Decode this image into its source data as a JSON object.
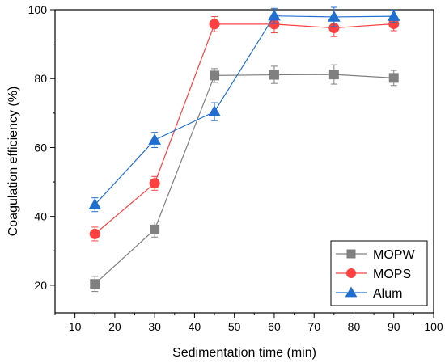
{
  "chart_data": {
    "type": "line",
    "xlabel": "Sedimentation time (min)",
    "ylabel": "Coagulation efficiency (%)",
    "xlim": [
      5,
      100
    ],
    "ylim": [
      12,
      100
    ],
    "x_ticks": [
      10,
      20,
      30,
      40,
      50,
      60,
      70,
      80,
      90,
      100
    ],
    "y_ticks": [
      20,
      40,
      60,
      80,
      100
    ],
    "grid": false,
    "legend_position": "bottom-right",
    "x": [
      15,
      30,
      45,
      60,
      75,
      90
    ],
    "series": [
      {
        "name": "MOPW",
        "color": "#808080",
        "marker": "square",
        "values": [
          20.4,
          36.2,
          80.9,
          81.1,
          81.2,
          80.2
        ],
        "errors": [
          2.2,
          2.2,
          2.0,
          2.5,
          2.8,
          2.2
        ]
      },
      {
        "name": "MOPS",
        "color": "#ff4040",
        "marker": "circle",
        "values": [
          34.9,
          49.6,
          95.8,
          95.8,
          94.7,
          95.9
        ],
        "errors": [
          2.0,
          2.0,
          2.2,
          2.5,
          2.5,
          2.0
        ]
      },
      {
        "name": "Alum",
        "color": "#1f6fd1",
        "marker": "triangle",
        "values": [
          43.4,
          62.2,
          70.4,
          98.2,
          97.9,
          98.1
        ],
        "errors": [
          2.0,
          2.2,
          2.6,
          2.2,
          2.8,
          1.8
        ]
      }
    ]
  }
}
